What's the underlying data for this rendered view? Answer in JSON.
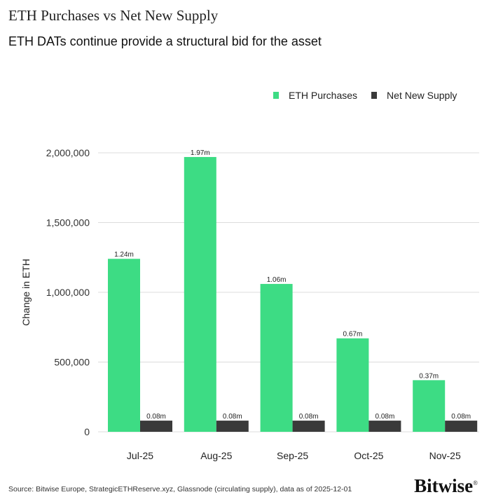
{
  "title": "ETH Purchases vs Net New Supply",
  "subtitle": "ETH DATs continue provide a structural bid for the asset",
  "source": "Source: Bitwise Europe, StrategicETHReserve.xyz, Glassnode (circulating supply), data as of 2025-12-01",
  "brand": "Bitwise",
  "brand_mark": "®",
  "colors": {
    "purchases": "#3ddc84",
    "supply": "#3a3a3a",
    "grid": "#dcdcdc"
  },
  "chart_data": {
    "type": "bar",
    "categories": [
      "Jul-25",
      "Aug-25",
      "Sep-25",
      "Oct-25",
      "Nov-25"
    ],
    "series": [
      {
        "name": "ETH Purchases",
        "values": [
          1240000,
          1970000,
          1060000,
          670000,
          370000
        ],
        "labels": [
          "1.24m",
          "1.97m",
          "1.06m",
          "0.67m",
          "0.37m"
        ]
      },
      {
        "name": "Net New Supply",
        "values": [
          80000,
          80000,
          80000,
          80000,
          80000
        ],
        "labels": [
          "0.08m",
          "0.08m",
          "0.08m",
          "0.08m",
          "0.08m"
        ]
      }
    ],
    "ylabel": "Change in ETH",
    "ylim": [
      0,
      2000000
    ],
    "yticks": [
      0,
      500000,
      1000000,
      1500000,
      2000000
    ],
    "ytick_labels": [
      "0",
      "500,000",
      "1,000,000",
      "1,500,000",
      "2,000,000"
    ],
    "grid": true,
    "legend_position": "top-right"
  }
}
